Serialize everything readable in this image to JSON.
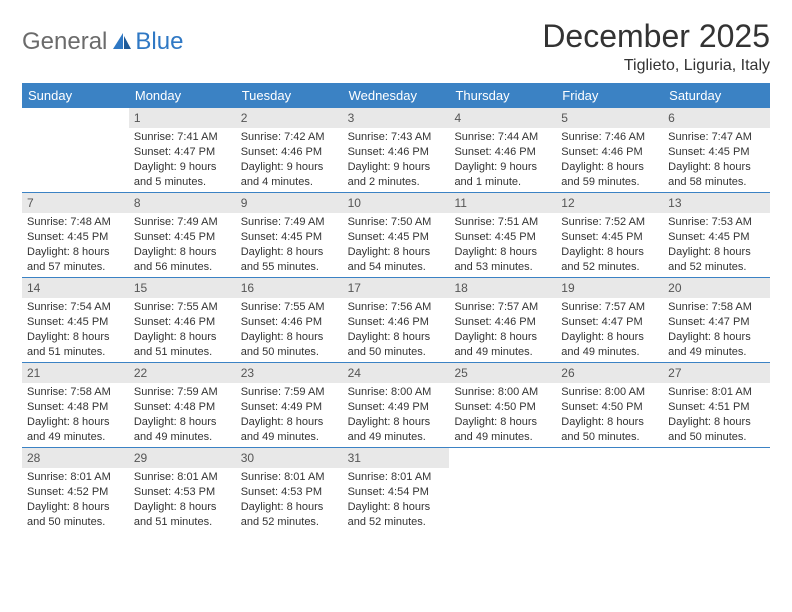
{
  "logo": {
    "general": "General",
    "blue": "Blue"
  },
  "title": "December 2025",
  "location": "Tiglieto, Liguria, Italy",
  "colors": {
    "header_bg": "#3b82c4",
    "header_text": "#ffffff",
    "daynum_bg": "#e8e8e8",
    "daynum_text": "#555555",
    "body_text": "#333333",
    "rule": "#3b82c4"
  },
  "day_names": [
    "Sunday",
    "Monday",
    "Tuesday",
    "Wednesday",
    "Thursday",
    "Friday",
    "Saturday"
  ],
  "weeks": [
    [
      {
        "n": "",
        "sr": "",
        "ss": "",
        "dl": ""
      },
      {
        "n": "1",
        "sr": "Sunrise: 7:41 AM",
        "ss": "Sunset: 4:47 PM",
        "dl": "Daylight: 9 hours and 5 minutes."
      },
      {
        "n": "2",
        "sr": "Sunrise: 7:42 AM",
        "ss": "Sunset: 4:46 PM",
        "dl": "Daylight: 9 hours and 4 minutes."
      },
      {
        "n": "3",
        "sr": "Sunrise: 7:43 AM",
        "ss": "Sunset: 4:46 PM",
        "dl": "Daylight: 9 hours and 2 minutes."
      },
      {
        "n": "4",
        "sr": "Sunrise: 7:44 AM",
        "ss": "Sunset: 4:46 PM",
        "dl": "Daylight: 9 hours and 1 minute."
      },
      {
        "n": "5",
        "sr": "Sunrise: 7:46 AM",
        "ss": "Sunset: 4:46 PM",
        "dl": "Daylight: 8 hours and 59 minutes."
      },
      {
        "n": "6",
        "sr": "Sunrise: 7:47 AM",
        "ss": "Sunset: 4:45 PM",
        "dl": "Daylight: 8 hours and 58 minutes."
      }
    ],
    [
      {
        "n": "7",
        "sr": "Sunrise: 7:48 AM",
        "ss": "Sunset: 4:45 PM",
        "dl": "Daylight: 8 hours and 57 minutes."
      },
      {
        "n": "8",
        "sr": "Sunrise: 7:49 AM",
        "ss": "Sunset: 4:45 PM",
        "dl": "Daylight: 8 hours and 56 minutes."
      },
      {
        "n": "9",
        "sr": "Sunrise: 7:49 AM",
        "ss": "Sunset: 4:45 PM",
        "dl": "Daylight: 8 hours and 55 minutes."
      },
      {
        "n": "10",
        "sr": "Sunrise: 7:50 AM",
        "ss": "Sunset: 4:45 PM",
        "dl": "Daylight: 8 hours and 54 minutes."
      },
      {
        "n": "11",
        "sr": "Sunrise: 7:51 AM",
        "ss": "Sunset: 4:45 PM",
        "dl": "Daylight: 8 hours and 53 minutes."
      },
      {
        "n": "12",
        "sr": "Sunrise: 7:52 AM",
        "ss": "Sunset: 4:45 PM",
        "dl": "Daylight: 8 hours and 52 minutes."
      },
      {
        "n": "13",
        "sr": "Sunrise: 7:53 AM",
        "ss": "Sunset: 4:45 PM",
        "dl": "Daylight: 8 hours and 52 minutes."
      }
    ],
    [
      {
        "n": "14",
        "sr": "Sunrise: 7:54 AM",
        "ss": "Sunset: 4:45 PM",
        "dl": "Daylight: 8 hours and 51 minutes."
      },
      {
        "n": "15",
        "sr": "Sunrise: 7:55 AM",
        "ss": "Sunset: 4:46 PM",
        "dl": "Daylight: 8 hours and 51 minutes."
      },
      {
        "n": "16",
        "sr": "Sunrise: 7:55 AM",
        "ss": "Sunset: 4:46 PM",
        "dl": "Daylight: 8 hours and 50 minutes."
      },
      {
        "n": "17",
        "sr": "Sunrise: 7:56 AM",
        "ss": "Sunset: 4:46 PM",
        "dl": "Daylight: 8 hours and 50 minutes."
      },
      {
        "n": "18",
        "sr": "Sunrise: 7:57 AM",
        "ss": "Sunset: 4:46 PM",
        "dl": "Daylight: 8 hours and 49 minutes."
      },
      {
        "n": "19",
        "sr": "Sunrise: 7:57 AM",
        "ss": "Sunset: 4:47 PM",
        "dl": "Daylight: 8 hours and 49 minutes."
      },
      {
        "n": "20",
        "sr": "Sunrise: 7:58 AM",
        "ss": "Sunset: 4:47 PM",
        "dl": "Daylight: 8 hours and 49 minutes."
      }
    ],
    [
      {
        "n": "21",
        "sr": "Sunrise: 7:58 AM",
        "ss": "Sunset: 4:48 PM",
        "dl": "Daylight: 8 hours and 49 minutes."
      },
      {
        "n": "22",
        "sr": "Sunrise: 7:59 AM",
        "ss": "Sunset: 4:48 PM",
        "dl": "Daylight: 8 hours and 49 minutes."
      },
      {
        "n": "23",
        "sr": "Sunrise: 7:59 AM",
        "ss": "Sunset: 4:49 PM",
        "dl": "Daylight: 8 hours and 49 minutes."
      },
      {
        "n": "24",
        "sr": "Sunrise: 8:00 AM",
        "ss": "Sunset: 4:49 PM",
        "dl": "Daylight: 8 hours and 49 minutes."
      },
      {
        "n": "25",
        "sr": "Sunrise: 8:00 AM",
        "ss": "Sunset: 4:50 PM",
        "dl": "Daylight: 8 hours and 49 minutes."
      },
      {
        "n": "26",
        "sr": "Sunrise: 8:00 AM",
        "ss": "Sunset: 4:50 PM",
        "dl": "Daylight: 8 hours and 50 minutes."
      },
      {
        "n": "27",
        "sr": "Sunrise: 8:01 AM",
        "ss": "Sunset: 4:51 PM",
        "dl": "Daylight: 8 hours and 50 minutes."
      }
    ],
    [
      {
        "n": "28",
        "sr": "Sunrise: 8:01 AM",
        "ss": "Sunset: 4:52 PM",
        "dl": "Daylight: 8 hours and 50 minutes."
      },
      {
        "n": "29",
        "sr": "Sunrise: 8:01 AM",
        "ss": "Sunset: 4:53 PM",
        "dl": "Daylight: 8 hours and 51 minutes."
      },
      {
        "n": "30",
        "sr": "Sunrise: 8:01 AM",
        "ss": "Sunset: 4:53 PM",
        "dl": "Daylight: 8 hours and 52 minutes."
      },
      {
        "n": "31",
        "sr": "Sunrise: 8:01 AM",
        "ss": "Sunset: 4:54 PM",
        "dl": "Daylight: 8 hours and 52 minutes."
      },
      {
        "n": "",
        "sr": "",
        "ss": "",
        "dl": ""
      },
      {
        "n": "",
        "sr": "",
        "ss": "",
        "dl": ""
      },
      {
        "n": "",
        "sr": "",
        "ss": "",
        "dl": ""
      }
    ]
  ]
}
